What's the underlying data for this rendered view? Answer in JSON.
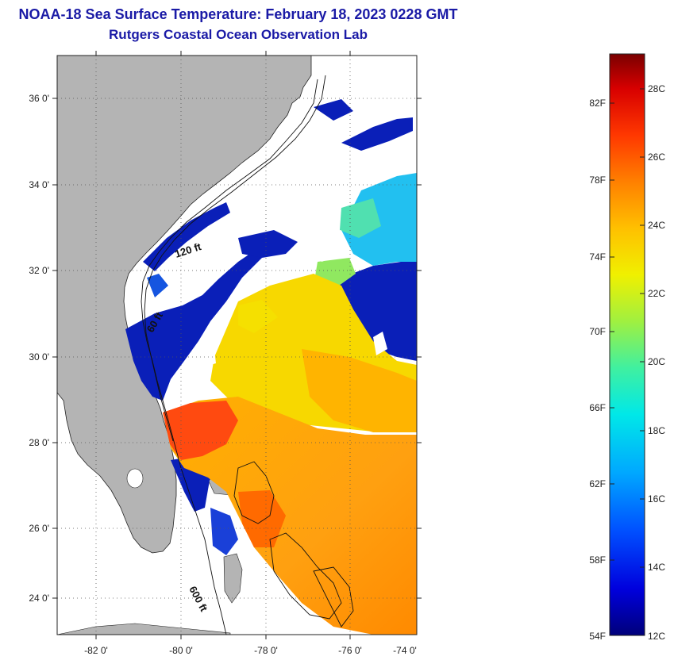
{
  "header": {
    "title": "NOAA-18 Sea Surface Temperature:  February 18, 2023 0228 GMT",
    "subtitle": "Rutgers Coastal Ocean Observation Lab"
  },
  "map": {
    "lat_labels": [
      "36 0'",
      "34 0'",
      "32 0'",
      "30 0'",
      "28 0'",
      "26 0'",
      "24 0'"
    ],
    "lon_labels": [
      "-82 0'",
      "-80 0'",
      "-78 0'",
      "-76 0'",
      "-74 0'"
    ],
    "contour_labels": [
      "120 ft",
      "60 ft",
      "600 ft"
    ]
  },
  "colorbar": {
    "fahrenheit_labels": [
      "82F",
      "78F",
      "74F",
      "70F",
      "66F",
      "62F",
      "58F",
      "54F"
    ],
    "celsius_labels": [
      "28C",
      "26C",
      "24C",
      "22C",
      "20C",
      "18C",
      "16C",
      "14C",
      "12C"
    ],
    "colors": [
      "#00007a",
      "#0000dd",
      "#0050ff",
      "#00a8ff",
      "#00e8e8",
      "#40f0a0",
      "#a0f040",
      "#f0f000",
      "#ffc000",
      "#ff8000",
      "#ff3800",
      "#d80000",
      "#7a0000"
    ]
  }
}
